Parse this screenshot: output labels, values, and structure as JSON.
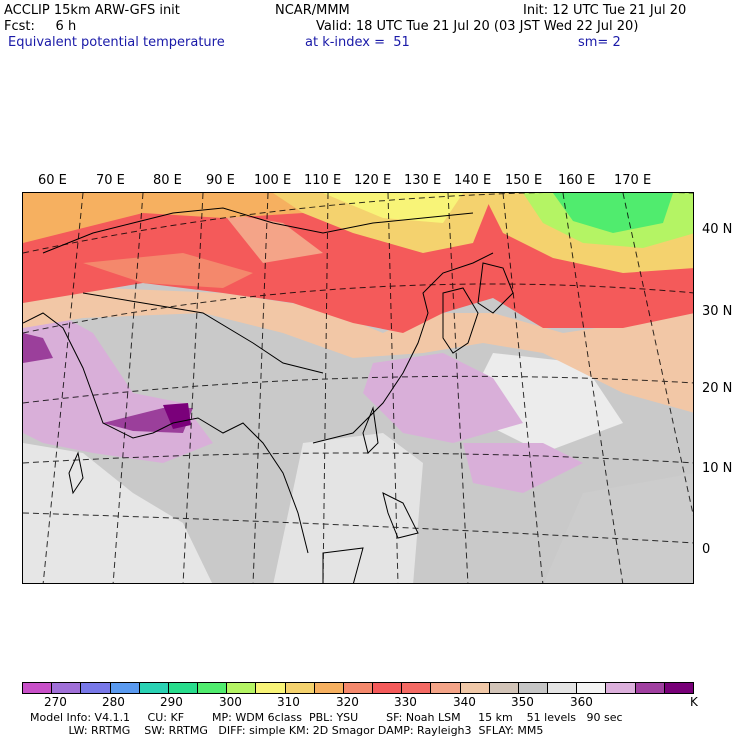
{
  "header": {
    "line1_left": "ACCLIP 15km ARW-GFS init",
    "line1_center": "NCAR/MMM",
    "line1_right": "Init: 12 UTC Tue 21 Jul 20",
    "line2_left": "Fcst:     6 h",
    "line2_right": "Valid: 18 UTC Tue 21 Jul 20 (03 JST Wed 22 Jul 20)",
    "line3_field": "Equivalent potential temperature",
    "line3_level": "at k-index =  51",
    "line3_smooth": "sm= 2"
  },
  "map": {
    "lon_labels": [
      "60 E",
      "70 E",
      "80 E",
      "90 E",
      "100 E",
      "110 E",
      "120 E",
      "130 E",
      "140 E",
      "150 E",
      "160 E",
      "170 E"
    ],
    "lat_labels": [
      "40 N",
      "30 N",
      "20 N",
      "10 N",
      "0"
    ]
  },
  "colorbar": {
    "colors": [
      "#c850c8",
      "#a070d8",
      "#7878e8",
      "#5a9af0",
      "#2ad2b4",
      "#28dc8c",
      "#50ec6e",
      "#b4f464",
      "#f8f478",
      "#f4d26e",
      "#f6b060",
      "#f4886c",
      "#f45a5a",
      "#f46a64",
      "#f4a488",
      "#f0c8a8",
      "#d2c4b8",
      "#c6c6c6",
      "#e4e4e4",
      "#f4f4f4",
      "#dcb0dc",
      "#a040a0",
      "#780078"
    ],
    "ticks": [
      "270",
      "280",
      "290",
      "300",
      "310",
      "320",
      "330",
      "340",
      "350",
      "360"
    ],
    "unit": "K"
  },
  "model_info": {
    "line1": "Model Info: V4.1.1     CU: KF        MP: WDM 6class  PBL: YSU        SF: Noah LSM     15 km    51 levels   90 sec",
    "line2": "           LW: RRTMG    SW: RRTMG   DIFF: simple KM: 2D Smagor DAMP: Rayleigh3  SFLAY: MM5"
  }
}
